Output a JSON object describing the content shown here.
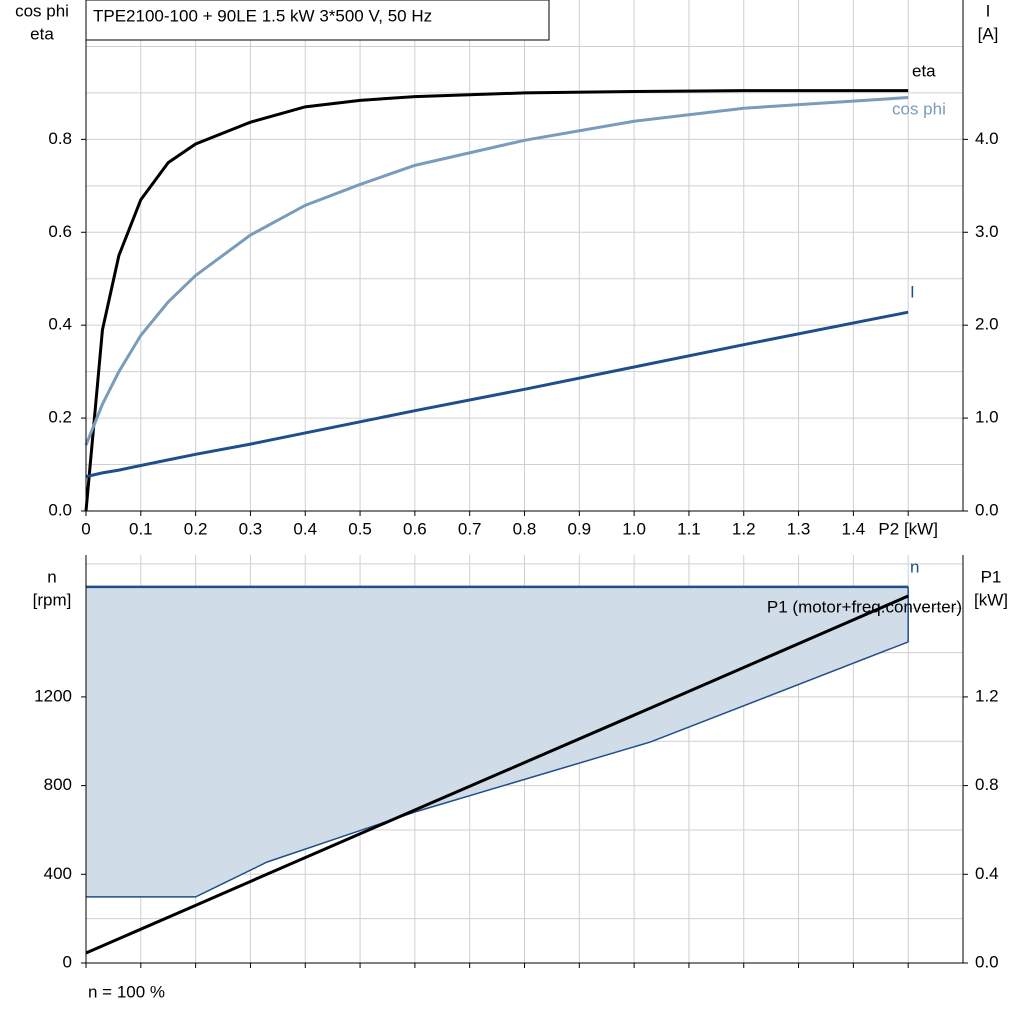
{
  "chart_data": [
    {
      "type": "line",
      "title": "TPE2100-100 + 90LE   1.5 kW   3*500 V, 50 Hz",
      "ylabel": [
        "cos phi",
        "eta"
      ],
      "y2label": [
        "I",
        "[A]"
      ],
      "x": [
        0,
        0.03,
        0.06,
        0.1,
        0.15,
        0.2,
        0.3,
        0.4,
        0.5,
        0.6,
        0.8,
        1.0,
        1.2,
        1.5
      ],
      "series": [
        {
          "name": "eta",
          "color": "#000000",
          "values": [
            0,
            0.39,
            0.55,
            0.67,
            0.75,
            0.79,
            0.837,
            0.87,
            0.884,
            0.892,
            0.9,
            0.903,
            0.905,
            0.905
          ]
        },
        {
          "name": "cos phi",
          "color": "#7a9cbb",
          "values": [
            0.142,
            0.23,
            0.3,
            0.378,
            0.45,
            0.507,
            0.594,
            0.658,
            0.703,
            0.744,
            0.798,
            0.839,
            0.867,
            0.89
          ]
        },
        {
          "name": "I",
          "color": "#1f4e8a",
          "axis": "y2",
          "values": [
            0.37,
            0.41,
            0.44,
            0.49,
            0.55,
            0.61,
            0.72,
            0.84,
            0.96,
            1.08,
            1.31,
            1.55,
            1.79,
            2.14
          ]
        }
      ],
      "xlim": [
        0,
        1.6
      ],
      "xticks": [
        0,
        0.1,
        0.2,
        0.3,
        0.4,
        0.5,
        0.6,
        0.7,
        0.8,
        0.9,
        {
          "value": 1,
          "label": "1.0"
        },
        1.1,
        1.2,
        1.3,
        1.4,
        {
          "value": 1.5,
          "label": "P2 [kW]"
        }
      ],
      "ylim": [
        0,
        1.1
      ],
      "yticks": [
        {
          "value": 0,
          "label": "0.0"
        },
        0.2,
        0.4,
        0.6,
        0.8
      ],
      "y2lim": [
        0,
        5.5
      ],
      "y2ticks": [
        {
          "value": 0,
          "label": "0.0"
        },
        {
          "value": 1,
          "label": "1.0"
        },
        {
          "value": 2,
          "label": "2.0"
        },
        {
          "value": 3,
          "label": "3.0"
        },
        {
          "value": 4,
          "label": "4.0"
        }
      ],
      "grid": true
    },
    {
      "type": "area",
      "ylabel": [
        "n",
        "[rpm]"
      ],
      "y2label": [
        "P1",
        "[kW]"
      ],
      "footer": "n = 100 %",
      "x": [
        0,
        0.2,
        0.33,
        0.6,
        1.03,
        1.5
      ],
      "series": [
        {
          "name": "n",
          "color": "#1f4e8a",
          "fill": "#d0dce8",
          "values": [
            1696,
            1696,
            1696,
            1696,
            1696,
            1696
          ],
          "min_values": [
            298,
            298,
            455,
            681,
            997,
            1448
          ]
        },
        {
          "name": "P1 (motor+freq.converter)",
          "color": "#000000",
          "axis": "y2",
          "values": [
            0.045,
            0.26,
            0.4,
            0.69,
            1.15,
            1.655
          ]
        }
      ],
      "xlim": [
        0,
        1.6
      ],
      "xticks": [
        0,
        0.1,
        0.2,
        0.3,
        0.4,
        0.5,
        0.6,
        0.7,
        0.8,
        0.9,
        1.0,
        1.1,
        1.2,
        1.3,
        1.4,
        1.5
      ],
      "ylim": [
        0,
        1840
      ],
      "yticks": [
        0,
        400,
        800,
        1200
      ],
      "y2lim": [
        0,
        1.84
      ],
      "y2ticks": [
        {
          "value": 0,
          "label": "0.0"
        },
        0.4,
        0.8,
        1.2
      ],
      "grid": true
    }
  ]
}
